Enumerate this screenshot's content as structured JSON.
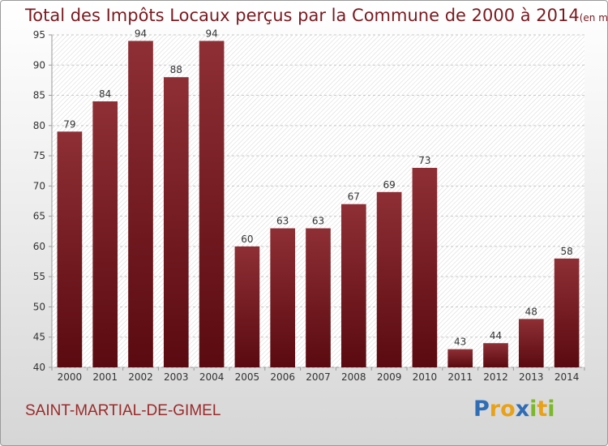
{
  "title": "Total des Impôts Locaux perçus par la Commune de 2000 à 2014",
  "title_unit": "(en milliers d'€)",
  "commune": "SAINT-MARTIAL-DE-GIMEL",
  "logo": {
    "text": "Proxiti",
    "letters": [
      {
        "ch": "P",
        "color": "#2f6db5"
      },
      {
        "ch": "r",
        "color": "#e8a21a"
      },
      {
        "ch": "o",
        "color": "#e8a21a"
      },
      {
        "ch": "x",
        "color": "#2f6db5"
      },
      {
        "ch": "i",
        "color": "#7bb82a"
      },
      {
        "ch": "t",
        "color": "#e8a21a"
      },
      {
        "ch": "i",
        "color": "#7bb82a"
      }
    ]
  },
  "colors": {
    "bar_dark": "#5c0a10",
    "bar_light": "#8e2f35",
    "title": "#7a1a20"
  },
  "chart_data": {
    "type": "bar",
    "categories": [
      "2000",
      "2001",
      "2002",
      "2003",
      "2004",
      "2005",
      "2006",
      "2007",
      "2008",
      "2009",
      "2010",
      "2011",
      "2012",
      "2013",
      "2014"
    ],
    "values": [
      79,
      84,
      94,
      88,
      94,
      60,
      63,
      63,
      67,
      69,
      73,
      43,
      44,
      48,
      58
    ],
    "ylim": [
      40,
      95
    ],
    "yticks": [
      40,
      45,
      50,
      55,
      60,
      65,
      70,
      75,
      80,
      85,
      90,
      95
    ],
    "grid": true
  }
}
